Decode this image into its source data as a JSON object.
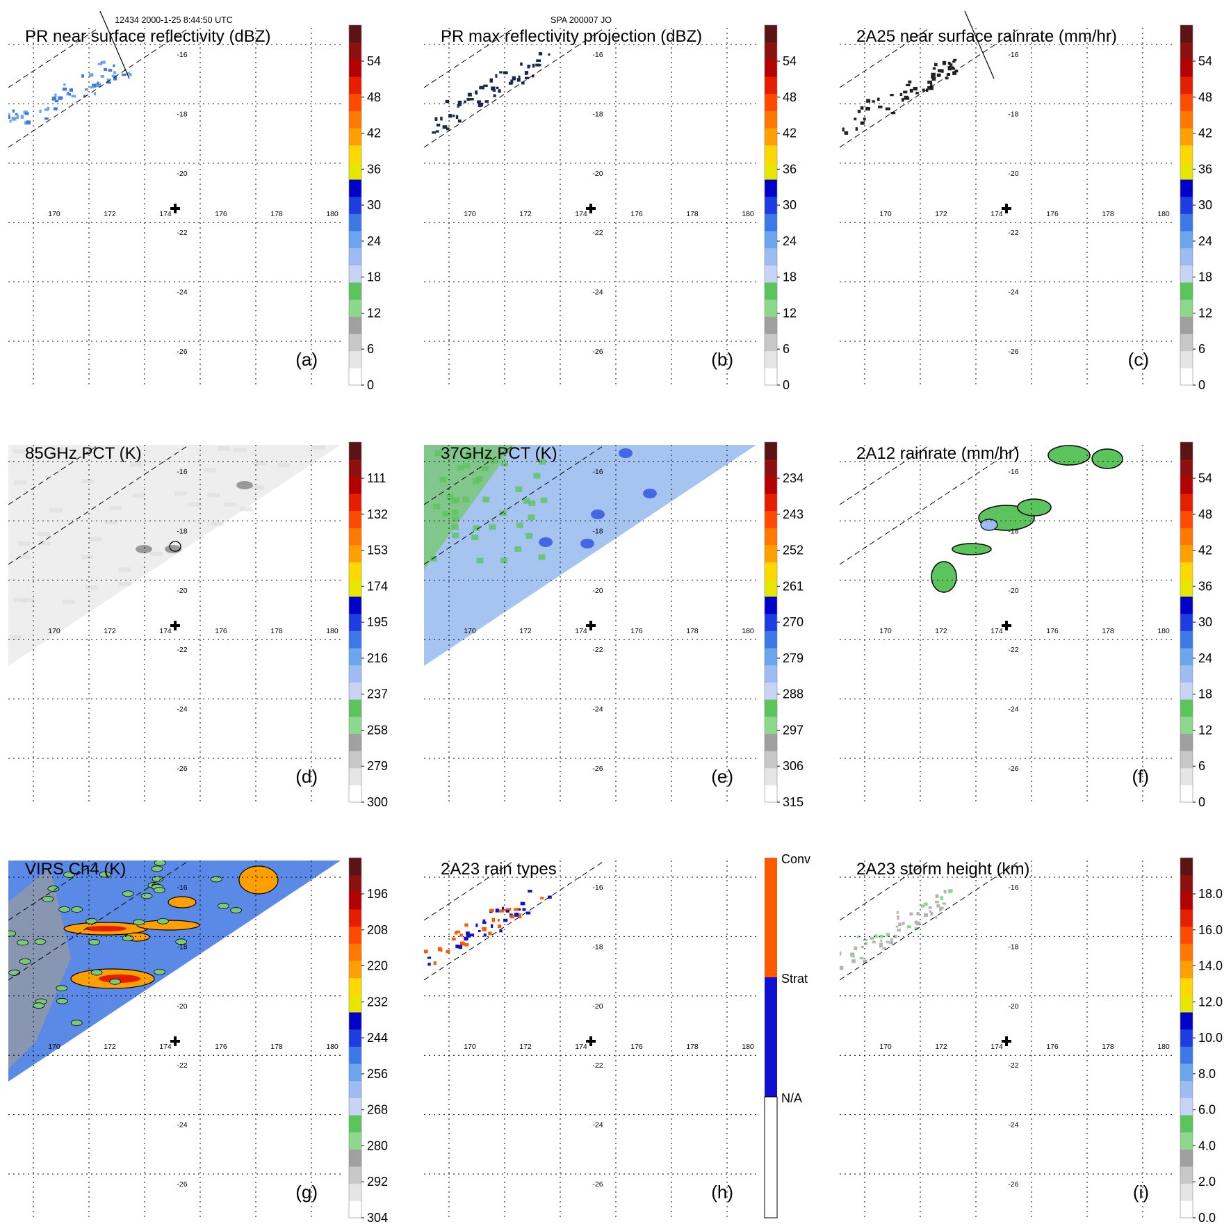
{
  "header": {
    "orbit_label": "12434 2000-1-25 8:44:50 UTC",
    "storm_label": "SPA 200007 JO"
  },
  "common": {
    "lon_ticks": [
      170,
      172,
      174,
      176,
      178,
      180
    ],
    "lat_ticks": [
      -16,
      -18,
      -20,
      -22,
      -24,
      -26
    ],
    "center_marker": "plus-marker",
    "center_lon": 175.0,
    "center_lat": -21.6
  },
  "chart_data": [
    {
      "id": "a",
      "type": "heatmap",
      "title": "PR near surface reflectivity (dBZ)",
      "panel_label": "(a)",
      "colorbar": {
        "labels": [
          "54",
          "48",
          "42",
          "36",
          "30",
          "24",
          "18",
          "12",
          "6",
          "0"
        ]
      }
    },
    {
      "id": "b",
      "type": "heatmap",
      "title": "PR max reflectivity projection (dBZ)",
      "panel_label": "(b)",
      "colorbar": {
        "labels": [
          "54",
          "48",
          "42",
          "36",
          "30",
          "24",
          "18",
          "12",
          "6",
          "0"
        ]
      }
    },
    {
      "id": "c",
      "type": "heatmap",
      "title": "2A25 near surface rainrate (mm/hr)",
      "panel_label": "(c)",
      "colorbar": {
        "labels": [
          "54",
          "48",
          "42",
          "36",
          "30",
          "24",
          "18",
          "12",
          "6",
          "0"
        ]
      }
    },
    {
      "id": "d",
      "type": "heatmap",
      "title": "85GHz PCT (K)",
      "panel_label": "(d)",
      "colorbar": {
        "labels": [
          "111",
          "132",
          "153",
          "174",
          "195",
          "216",
          "237",
          "258",
          "279",
          "300"
        ]
      }
    },
    {
      "id": "e",
      "type": "heatmap",
      "title": "37GHz PCT (K)",
      "panel_label": "(e)",
      "colorbar": {
        "labels": [
          "234",
          "243",
          "252",
          "261",
          "270",
          "279",
          "288",
          "297",
          "306",
          "315"
        ]
      }
    },
    {
      "id": "f",
      "type": "heatmap",
      "title": "2A12 rainrate (mm/hr)",
      "panel_label": "(f)",
      "colorbar": {
        "labels": [
          "54",
          "48",
          "42",
          "36",
          "30",
          "24",
          "18",
          "12",
          "6",
          "0"
        ]
      }
    },
    {
      "id": "g",
      "type": "heatmap",
      "title": "VIRS Ch4 (K)",
      "panel_label": "(g)",
      "colorbar": {
        "labels": [
          "196",
          "208",
          "220",
          "232",
          "244",
          "256",
          "268",
          "280",
          "292",
          "304"
        ]
      }
    },
    {
      "id": "h",
      "type": "heatmap",
      "title": "2A23 rain types",
      "panel_label": "(h)",
      "colorbar": {
        "labels": [
          "Conv",
          "Strat",
          "N/A"
        ]
      }
    },
    {
      "id": "i",
      "type": "heatmap",
      "title": "2A23 storm height (km)",
      "panel_label": "(i)",
      "colorbar": {
        "labels": [
          "18.0",
          "16.0",
          "14.0",
          "12.0",
          "10.0",
          "8.0",
          "6.0",
          "4.0",
          "2.0",
          "0.0"
        ]
      }
    }
  ],
  "colors": {
    "scale": [
      "#ffffff",
      "#e6e6e6",
      "#c8c8c8",
      "#a0a0a0",
      "#8cd88c",
      "#5cc45c",
      "#c8d4f5",
      "#9fbcf2",
      "#6aa6ee",
      "#3c78e6",
      "#1c3ee0",
      "#0000c8",
      "#e6e600",
      "#ffd800",
      "#ffa000",
      "#ff7800",
      "#ff4a00",
      "#e61e00",
      "#b40000",
      "#8c1010",
      "#5a1414"
    ],
    "rain_types": [
      "#ffffff",
      "#1010d0",
      "#ff5a00"
    ],
    "pct85_field": "#eeeeee",
    "pct37_field": "#a6c4f0",
    "virs_field": "#5a8ae6"
  }
}
